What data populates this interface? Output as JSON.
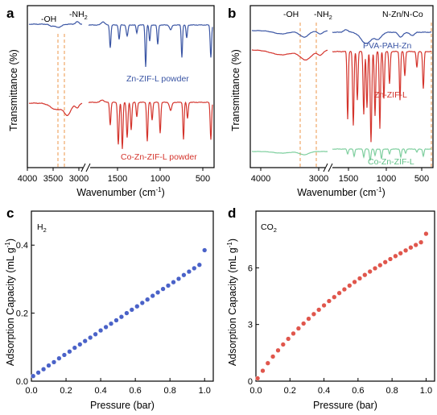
{
  "panels": {
    "a": {
      "letter": "a",
      "ylabel": "Transmittance (%)",
      "xlabel_main": "Wavenumber (cm",
      "xlabel_sup": "-1",
      "xlabel_end": ")",
      "ticks": [
        "4000",
        "3500",
        "3000",
        "1500",
        "1000",
        "500"
      ],
      "oh": "-OH",
      "nh_main": "-NH",
      "nh_sub": "2",
      "label_top": "Zn-ZIF-L powder",
      "label_bottom": "Co-Zn-ZIF-L powder"
    },
    "b": {
      "letter": "b",
      "ylabel": "Transmittance (%)",
      "xlabel_main": "Wavenumber (cm",
      "xlabel_sup": "-1",
      "xlabel_end": ")",
      "ticks": [
        "4000",
        "3000",
        "1500",
        "1000",
        "500"
      ],
      "oh": "-OH",
      "nh_main": "-NH",
      "nh_sub": "2",
      "corner": "N-Zn/N-Co",
      "label_1": "PVA-PAH-Zn",
      "label_2": "Zn-ZIF-L",
      "label_3": "Co-Zn-ZIF-L"
    },
    "c": {
      "letter": "c",
      "gas_main": "H",
      "gas_sub": "2",
      "xlabel": "Pressure (bar)",
      "ylabel_main": "Adsorption Capacity (mL g",
      "ylabel_sup": "-1",
      "ylabel_end": ")",
      "xticks": [
        "0.0",
        "0.2",
        "0.4",
        "0.6",
        "0.8",
        "1.0"
      ],
      "yticks": [
        "0.0",
        "0.2",
        "0.4"
      ]
    },
    "d": {
      "letter": "d",
      "gas_main": "CO",
      "gas_sub": "2",
      "xlabel": "Pressure (bar)",
      "ylabel_main": "Adsorption Capacity (mL g",
      "ylabel_sup": "-1",
      "ylabel_end": ")",
      "xticks": [
        "0.0",
        "0.2",
        "0.4",
        "0.6",
        "0.8",
        "1.0"
      ],
      "yticks": [
        "0",
        "3",
        "6"
      ]
    }
  },
  "chart_data": [
    {
      "panel": "a",
      "type": "line",
      "xlabel": "Wavenumber (cm-1)",
      "ylabel": "Transmittance (%)",
      "xlim": [
        4000,
        450
      ],
      "axis_break": [
        2800,
        2000
      ],
      "annotations": [
        "-OH",
        "-NH2"
      ],
      "marker_lines_x": [
        3450,
        3320
      ],
      "series": [
        {
          "name": "Zn-ZIF-L powder",
          "color": "#3a55a4",
          "peaks_x": [
            1580,
            1470,
            1420,
            1310,
            1180,
            1145,
            995,
            760,
            690,
            425
          ]
        },
        {
          "name": "Co-Zn-ZIF-L powder",
          "color": "#d4342c",
          "peaks_x": [
            1580,
            1470,
            1420,
            1310,
            1180,
            1145,
            995,
            760,
            690,
            425
          ]
        }
      ]
    },
    {
      "panel": "b",
      "type": "line",
      "xlabel": "Wavenumber (cm-1)",
      "ylabel": "Transmittance (%)",
      "xlim": [
        4000,
        450
      ],
      "axis_break": [
        2800,
        2000
      ],
      "annotations": [
        "-OH",
        "-NH2",
        "N-Zn/N-Co"
      ],
      "marker_lines_x": [
        3450,
        3320,
        425
      ],
      "series": [
        {
          "name": "PVA-PAH-Zn",
          "color": "#3a55a4"
        },
        {
          "name": "Zn-ZIF-L",
          "color": "#d4342c"
        },
        {
          "name": "Co-Zn-ZIF-L",
          "color": "#7fcf9f"
        }
      ]
    },
    {
      "panel": "c",
      "type": "scatter",
      "gas": "H2",
      "xlabel": "Pressure (bar)",
      "ylabel": "Adsorption Capacity (mL g-1)",
      "xlim": [
        0,
        1.05
      ],
      "ylim": [
        0,
        0.5
      ],
      "color": "#4a62c8",
      "x": [
        0.01,
        0.04,
        0.07,
        0.1,
        0.13,
        0.16,
        0.19,
        0.22,
        0.25,
        0.28,
        0.31,
        0.34,
        0.37,
        0.4,
        0.43,
        0.46,
        0.49,
        0.52,
        0.55,
        0.58,
        0.61,
        0.64,
        0.67,
        0.7,
        0.73,
        0.76,
        0.79,
        0.82,
        0.85,
        0.88,
        0.91,
        0.94,
        0.97,
        1.0
      ],
      "y": [
        0.015,
        0.025,
        0.035,
        0.046,
        0.056,
        0.067,
        0.077,
        0.087,
        0.098,
        0.108,
        0.118,
        0.128,
        0.138,
        0.149,
        0.159,
        0.169,
        0.179,
        0.189,
        0.2,
        0.21,
        0.22,
        0.23,
        0.24,
        0.251,
        0.261,
        0.271,
        0.281,
        0.291,
        0.301,
        0.312,
        0.322,
        0.332,
        0.342,
        0.385
      ]
    },
    {
      "panel": "d",
      "type": "scatter",
      "gas": "CO2",
      "xlabel": "Pressure (bar)",
      "ylabel": "Adsorption Capacity (mL g-1)",
      "xlim": [
        0,
        1.05
      ],
      "ylim": [
        0,
        9
      ],
      "color": "#e0564c",
      "x": [
        0.01,
        0.04,
        0.07,
        0.1,
        0.13,
        0.16,
        0.19,
        0.22,
        0.25,
        0.28,
        0.31,
        0.34,
        0.37,
        0.4,
        0.43,
        0.46,
        0.49,
        0.52,
        0.55,
        0.58,
        0.61,
        0.64,
        0.67,
        0.7,
        0.73,
        0.76,
        0.79,
        0.82,
        0.85,
        0.88,
        0.91,
        0.94,
        0.97,
        1.0
      ],
      "y": [
        0.15,
        0.55,
        0.95,
        1.3,
        1.63,
        1.94,
        2.24,
        2.52,
        2.79,
        3.05,
        3.3,
        3.55,
        3.78,
        4.01,
        4.24,
        4.45,
        4.66,
        4.86,
        5.06,
        5.25,
        5.44,
        5.62,
        5.8,
        5.97,
        6.14,
        6.3,
        6.46,
        6.62,
        6.77,
        6.92,
        7.07,
        7.21,
        7.35,
        7.8
      ]
    }
  ]
}
